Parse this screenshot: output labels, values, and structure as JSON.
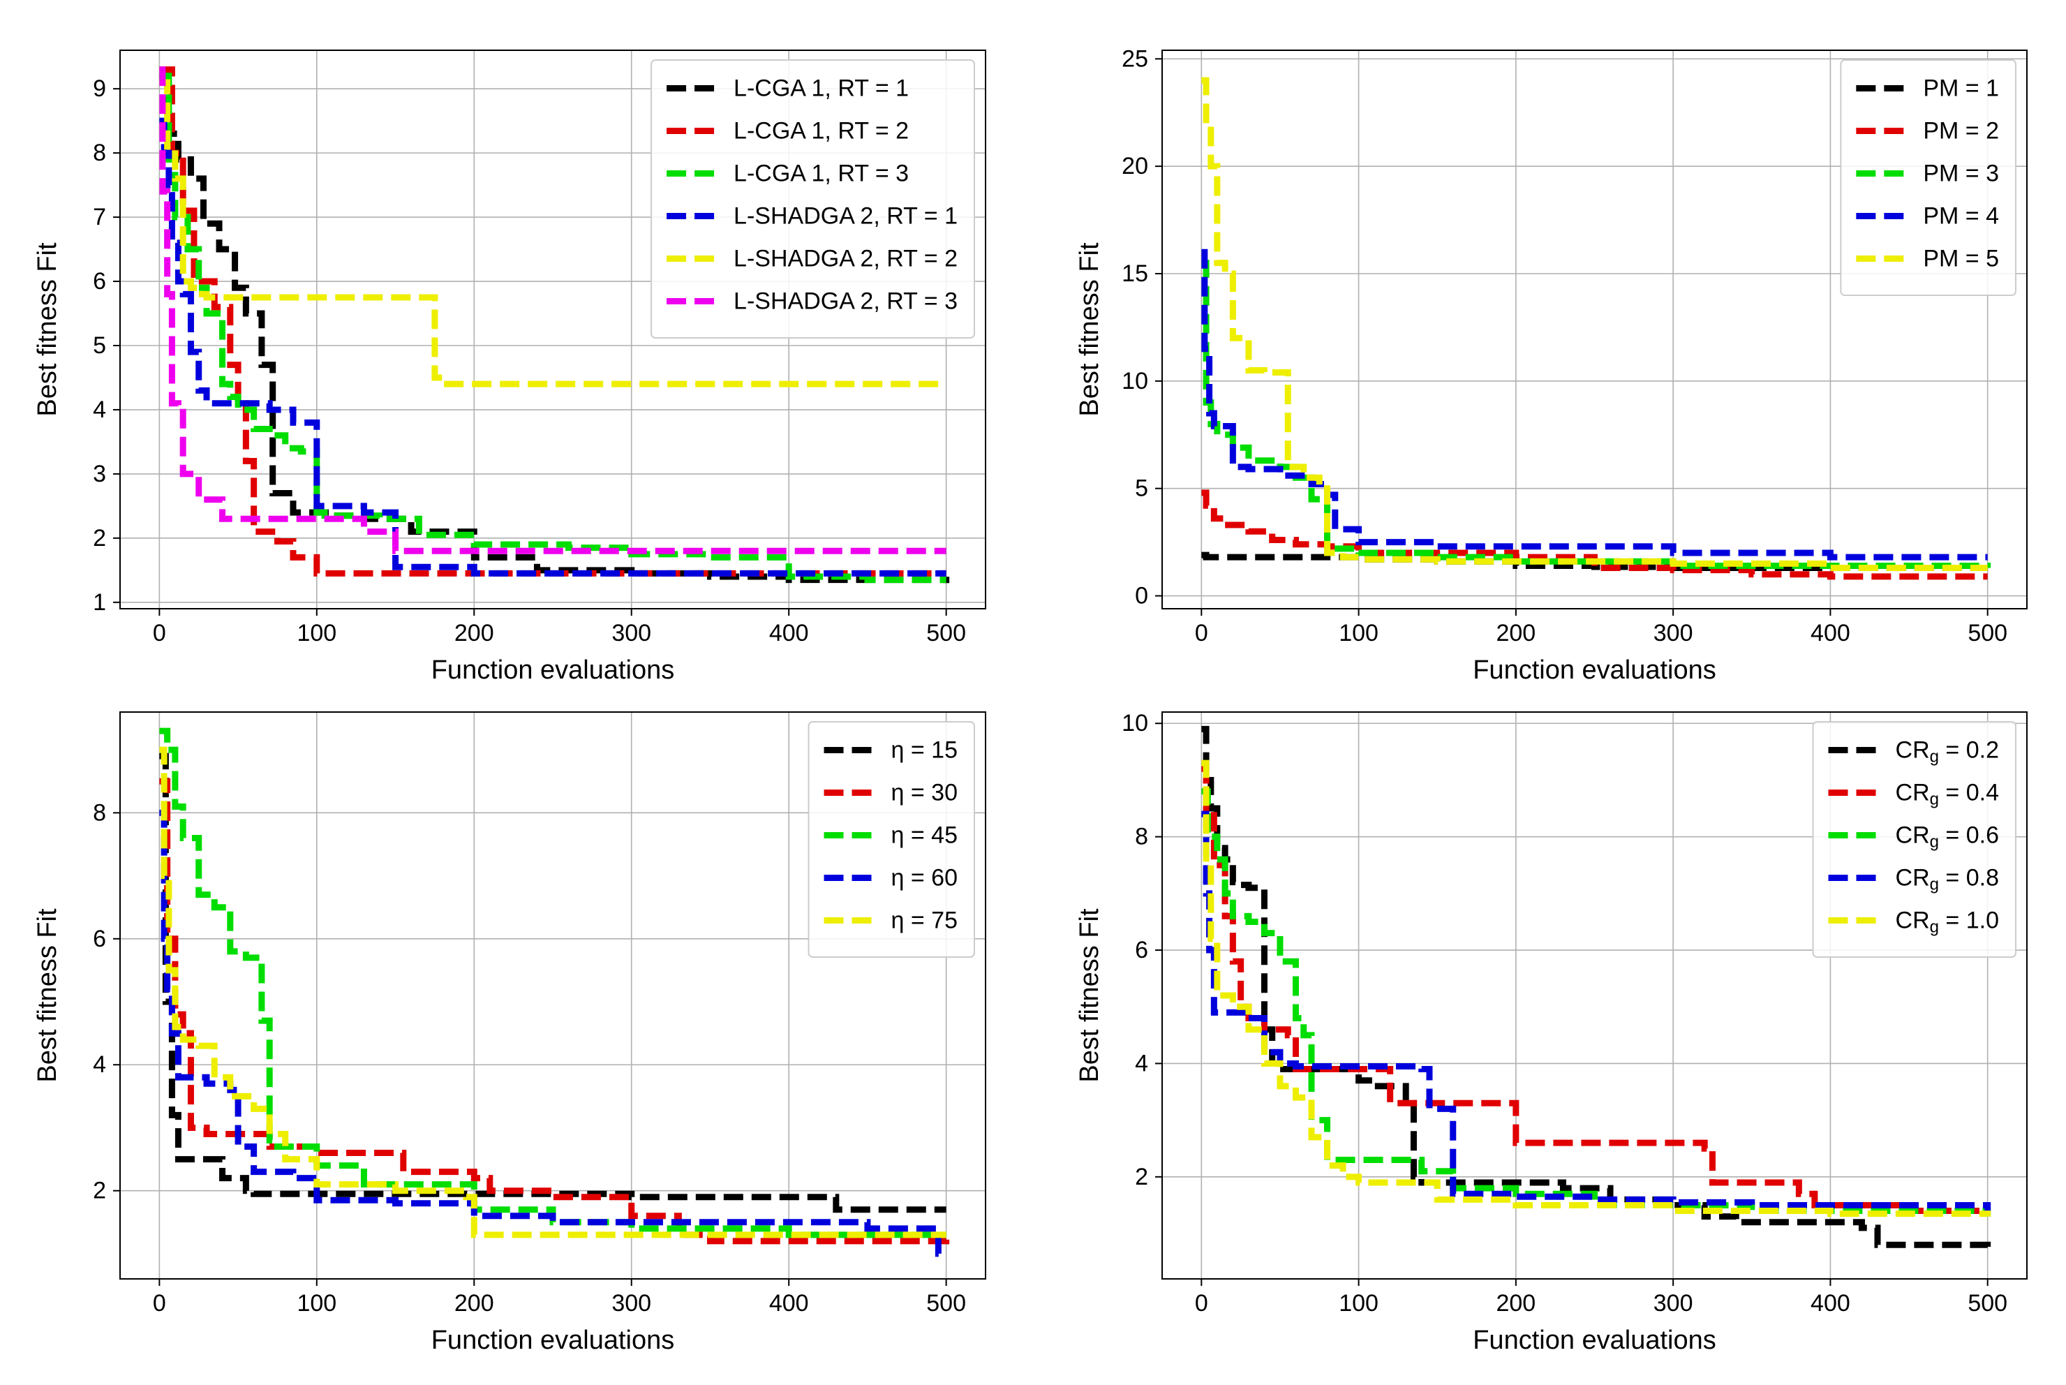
{
  "chart_data": [
    {
      "type": "line",
      "title": "",
      "xlabel": "Function evaluations",
      "ylabel": "Best fitness Fit",
      "xlim": [
        -25,
        525
      ],
      "ylim": [
        0.9,
        9.6
      ],
      "xticks": [
        0,
        100,
        200,
        300,
        400,
        500
      ],
      "yticks": [
        1,
        2,
        3,
        4,
        5,
        6,
        7,
        8,
        9
      ],
      "grid": true,
      "legend_position": "top-right",
      "series": [
        {
          "name": "L-CGA 1, RT = 1",
          "color": "#000000",
          "x": [
            0,
            5,
            12,
            20,
            28,
            38,
            48,
            55,
            65,
            72,
            85,
            110,
            130,
            160,
            200,
            240,
            300,
            350,
            400,
            450,
            500
          ],
          "y": [
            9.2,
            8.3,
            7.9,
            7.6,
            6.9,
            6.5,
            5.9,
            5.5,
            4.7,
            2.7,
            2.4,
            2.35,
            2.3,
            2.1,
            1.7,
            1.5,
            1.45,
            1.4,
            1.35,
            1.35,
            1.3
          ]
        },
        {
          "name": "L-CGA 1, RT = 2",
          "color": "#e00000",
          "x": [
            0,
            8,
            15,
            22,
            35,
            45,
            50,
            55,
            60,
            75,
            85,
            100,
            150,
            200,
            300,
            400,
            500
          ],
          "y": [
            9.3,
            8.0,
            7.1,
            6.0,
            5.6,
            4.7,
            4.1,
            3.2,
            2.1,
            1.95,
            1.7,
            1.45,
            1.45,
            1.45,
            1.45,
            1.45,
            1.45
          ]
        },
        {
          "name": "L-CGA 1, RT = 3",
          "color": "#00dd00",
          "x": [
            0,
            6,
            10,
            18,
            25,
            30,
            40,
            45,
            50,
            60,
            70,
            80,
            90,
            100,
            105,
            120,
            140,
            165,
            200,
            260,
            300,
            350,
            400,
            450,
            500
          ],
          "y": [
            9.2,
            7.9,
            7.0,
            6.5,
            5.9,
            5.5,
            4.4,
            4.2,
            4.0,
            3.7,
            3.6,
            3.4,
            3.35,
            2.4,
            2.35,
            2.35,
            2.3,
            2.05,
            1.9,
            1.85,
            1.75,
            1.7,
            1.4,
            1.35,
            1.35
          ]
        },
        {
          "name": "L-SHADGA 2, RT = 1",
          "color": "#0000dd",
          "x": [
            0,
            3,
            6,
            8,
            12,
            15,
            20,
            25,
            30,
            40,
            60,
            70,
            85,
            100,
            130,
            150,
            200,
            250,
            300,
            400,
            450,
            500
          ],
          "y": [
            8.5,
            8.0,
            7.5,
            6.6,
            6.0,
            5.8,
            4.9,
            4.3,
            4.1,
            4.1,
            4.1,
            4.0,
            3.8,
            2.5,
            2.4,
            1.55,
            1.45,
            1.45,
            1.45,
            1.45,
            1.45,
            1.45
          ]
        },
        {
          "name": "L-SHADGA 2, RT = 2",
          "color": "#eeee00",
          "x": [
            0,
            5,
            10,
            15,
            20,
            25,
            30,
            50,
            100,
            150,
            172,
            175,
            180,
            200,
            300,
            400,
            500
          ],
          "y": [
            9.1,
            8.1,
            7.6,
            6.0,
            5.9,
            5.8,
            5.75,
            5.75,
            5.75,
            5.75,
            5.75,
            4.5,
            4.4,
            4.4,
            4.4,
            4.4,
            4.4
          ]
        },
        {
          "name": "L-SHADGA 2, RT = 3",
          "color": "#ee00ee",
          "x": [
            0,
            2,
            5,
            8,
            12,
            15,
            25,
            40,
            60,
            80,
            110,
            130,
            150,
            200,
            300,
            400,
            500
          ],
          "y": [
            9.3,
            7.4,
            5.8,
            4.1,
            4.05,
            3.0,
            2.6,
            2.3,
            2.3,
            2.3,
            2.3,
            2.1,
            1.8,
            1.8,
            1.8,
            1.8,
            1.8
          ]
        }
      ]
    },
    {
      "type": "line",
      "title": "",
      "xlabel": "Function evaluations",
      "ylabel": "Best fitness Fit",
      "xlim": [
        -25,
        525
      ],
      "ylim": [
        -0.6,
        25.4
      ],
      "xticks": [
        0,
        100,
        200,
        300,
        400,
        500
      ],
      "yticks": [
        0,
        5,
        10,
        15,
        20,
        25
      ],
      "grid": true,
      "legend_position": "top-right",
      "series": [
        {
          "name": "PM = 1",
          "color": "#000000",
          "x": [
            0,
            3,
            10,
            50,
            100,
            150,
            200,
            250,
            300,
            350,
            400,
            450,
            500
          ],
          "y": [
            1.9,
            1.8,
            1.8,
            1.8,
            1.7,
            1.6,
            1.4,
            1.35,
            1.3,
            1.3,
            1.3,
            1.3,
            1.3
          ]
        },
        {
          "name": "PM = 2",
          "color": "#e00000",
          "x": [
            0,
            3,
            8,
            15,
            30,
            45,
            60,
            80,
            100,
            200,
            250,
            300,
            350,
            400,
            500
          ],
          "y": [
            4.8,
            4.2,
            3.6,
            3.3,
            3.0,
            2.6,
            2.4,
            2.3,
            2.0,
            1.8,
            1.3,
            1.2,
            1.0,
            0.9,
            0.9
          ]
        },
        {
          "name": "PM = 3",
          "color": "#00dd00",
          "x": [
            0,
            3,
            6,
            10,
            20,
            30,
            50,
            60,
            70,
            80,
            100,
            150,
            200,
            300,
            400,
            500
          ],
          "y": [
            15.5,
            9.0,
            8.0,
            7.5,
            6.9,
            6.3,
            6.0,
            5.5,
            4.5,
            2.2,
            2.0,
            1.8,
            1.6,
            1.4,
            1.4,
            1.3
          ]
        },
        {
          "name": "PM = 4",
          "color": "#0000dd",
          "x": [
            0,
            2,
            5,
            8,
            20,
            30,
            50,
            70,
            80,
            85,
            100,
            150,
            200,
            300,
            400,
            500
          ],
          "y": [
            16.0,
            11.5,
            8.5,
            7.9,
            6.0,
            5.9,
            5.6,
            5.2,
            4.7,
            3.1,
            2.5,
            2.3,
            2.3,
            2.0,
            1.8,
            1.8
          ]
        },
        {
          "name": "PM = 5",
          "color": "#eeee00",
          "x": [
            0,
            3,
            6,
            10,
            15,
            20,
            30,
            40,
            50,
            55,
            65,
            75,
            80,
            90,
            100,
            150,
            200,
            300,
            400,
            500
          ],
          "y": [
            24.0,
            22.0,
            20.0,
            15.5,
            15.0,
            12.0,
            10.5,
            10.4,
            10.4,
            6.0,
            5.5,
            5.0,
            2.0,
            1.8,
            1.7,
            1.6,
            1.6,
            1.5,
            1.3,
            1.3
          ]
        }
      ]
    },
    {
      "type": "line",
      "title": "",
      "xlabel": "Function evaluations",
      "ylabel": "Best fitness Fit",
      "xlim": [
        -25,
        525
      ],
      "ylim": [
        0.6,
        9.6
      ],
      "xticks": [
        0,
        100,
        200,
        300,
        400,
        500
      ],
      "yticks": [
        2,
        4,
        6,
        8
      ],
      "grid": true,
      "legend_position": "top-right",
      "series": [
        {
          "name": "η = 15",
          "color": "#000000",
          "x": [
            0,
            4,
            8,
            12,
            20,
            40,
            55,
            60,
            100,
            150,
            200,
            250,
            300,
            350,
            400,
            425,
            430,
            500
          ],
          "y": [
            8.9,
            5.0,
            3.2,
            2.5,
            2.5,
            2.2,
            2.0,
            1.95,
            1.95,
            1.95,
            1.95,
            1.95,
            1.9,
            1.9,
            1.9,
            1.9,
            1.7,
            1.7
          ]
        },
        {
          "name": "η = 30",
          "color": "#e00000",
          "x": [
            0,
            5,
            10,
            15,
            20,
            30,
            50,
            70,
            100,
            150,
            155,
            200,
            210,
            250,
            300,
            330,
            350,
            400,
            450,
            500
          ],
          "y": [
            8.5,
            6.0,
            4.8,
            4.5,
            3.0,
            2.9,
            2.9,
            2.7,
            2.6,
            2.6,
            2.3,
            2.2,
            2.0,
            1.9,
            1.6,
            1.3,
            1.2,
            1.2,
            1.2,
            1.3
          ]
        },
        {
          "name": "η = 45",
          "color": "#00dd00",
          "x": [
            0,
            5,
            10,
            15,
            25,
            35,
            45,
            55,
            65,
            70,
            75,
            100,
            130,
            200,
            250,
            300,
            350,
            400,
            450,
            500
          ],
          "y": [
            9.3,
            9.0,
            8.1,
            7.6,
            6.7,
            6.5,
            5.8,
            5.7,
            4.7,
            2.8,
            2.7,
            2.4,
            2.1,
            1.7,
            1.5,
            1.4,
            1.4,
            1.3,
            1.3,
            1.3
          ]
        },
        {
          "name": "η = 60",
          "color": "#0000dd",
          "x": [
            0,
            3,
            5,
            8,
            12,
            20,
            30,
            45,
            50,
            60,
            75,
            85,
            100,
            150,
            200,
            250,
            300,
            350,
            400,
            450,
            495,
            500
          ],
          "y": [
            8.0,
            6.0,
            5.2,
            4.5,
            3.8,
            3.8,
            3.7,
            3.6,
            2.7,
            2.3,
            2.3,
            2.2,
            1.85,
            1.8,
            1.6,
            1.5,
            1.5,
            1.5,
            1.5,
            1.4,
            1.0,
            1.0
          ]
        },
        {
          "name": "η = 75",
          "color": "#eeee00",
          "x": [
            0,
            3,
            6,
            10,
            15,
            25,
            35,
            45,
            60,
            70,
            80,
            100,
            150,
            195,
            200,
            250,
            300,
            350,
            400,
            450,
            500
          ],
          "y": [
            9.0,
            7.0,
            5.5,
            4.6,
            4.4,
            4.3,
            3.8,
            3.5,
            3.3,
            2.9,
            2.5,
            2.1,
            2.0,
            1.9,
            1.3,
            1.3,
            1.3,
            1.3,
            1.3,
            1.3,
            1.3
          ]
        }
      ]
    },
    {
      "type": "line",
      "title": "",
      "xlabel": "Function evaluations",
      "ylabel": "Best fitness Fit",
      "xlim": [
        -25,
        525
      ],
      "ylim": [
        0.2,
        10.2
      ],
      "xticks": [
        0,
        100,
        200,
        300,
        400,
        500
      ],
      "yticks": [
        2,
        4,
        6,
        8,
        10
      ],
      "grid": true,
      "legend_position": "top-right",
      "series": [
        {
          "name": "CRg = 0.2",
          "color": "#000000",
          "x": [
            0,
            3,
            6,
            10,
            15,
            20,
            25,
            30,
            40,
            45,
            50,
            100,
            110,
            130,
            135,
            140,
            200,
            230,
            260,
            300,
            320,
            340,
            400,
            420,
            430,
            500
          ],
          "y": [
            9.9,
            9.0,
            8.5,
            7.8,
            7.6,
            7.2,
            7.15,
            7.1,
            4.6,
            4.0,
            3.9,
            3.7,
            3.6,
            3.3,
            2.0,
            1.9,
            1.9,
            1.8,
            1.6,
            1.5,
            1.3,
            1.2,
            1.2,
            1.1,
            0.8,
            0.7
          ]
        },
        {
          "name": "CRg = 0.4",
          "color": "#e00000",
          "x": [
            0,
            3,
            8,
            15,
            20,
            25,
            30,
            40,
            55,
            60,
            110,
            120,
            140,
            195,
            200,
            320,
            325,
            380,
            390,
            450,
            500
          ],
          "y": [
            9.2,
            8.5,
            7.5,
            6.6,
            5.8,
            5.0,
            4.8,
            4.6,
            4.5,
            3.9,
            3.9,
            3.3,
            3.3,
            3.3,
            2.6,
            2.5,
            1.9,
            1.7,
            1.5,
            1.4,
            1.4
          ]
        },
        {
          "name": "CRg = 0.6",
          "color": "#00dd00",
          "x": [
            0,
            4,
            10,
            15,
            20,
            30,
            40,
            50,
            60,
            65,
            70,
            80,
            130,
            140,
            160,
            200,
            250,
            300,
            350,
            400,
            450,
            500
          ],
          "y": [
            8.8,
            8.0,
            7.6,
            7.0,
            6.6,
            6.5,
            6.3,
            5.8,
            4.8,
            4.5,
            3.0,
            2.3,
            2.3,
            2.1,
            1.8,
            1.7,
            1.5,
            1.5,
            1.4,
            1.4,
            1.4,
            1.3
          ]
        },
        {
          "name": "CRg = 0.8",
          "color": "#0000dd",
          "x": [
            0,
            3,
            5,
            8,
            15,
            20,
            30,
            40,
            50,
            60,
            100,
            140,
            145,
            160,
            200,
            250,
            300,
            350,
            400,
            500
          ],
          "y": [
            8.4,
            7.0,
            6.0,
            4.9,
            4.9,
            4.9,
            4.8,
            4.2,
            4.0,
            3.95,
            3.95,
            3.9,
            3.2,
            1.7,
            1.65,
            1.6,
            1.55,
            1.5,
            1.5,
            1.4
          ]
        },
        {
          "name": "CRg = 1.0",
          "color": "#eeee00",
          "x": [
            0,
            3,
            6,
            10,
            20,
            30,
            40,
            50,
            60,
            70,
            80,
            90,
            100,
            150,
            200,
            300,
            400,
            500
          ],
          "y": [
            9.3,
            7.5,
            6.2,
            5.2,
            5.0,
            4.6,
            4.0,
            3.6,
            3.4,
            2.7,
            2.2,
            2.0,
            1.9,
            1.6,
            1.5,
            1.4,
            1.35,
            1.3
          ]
        }
      ]
    }
  ]
}
